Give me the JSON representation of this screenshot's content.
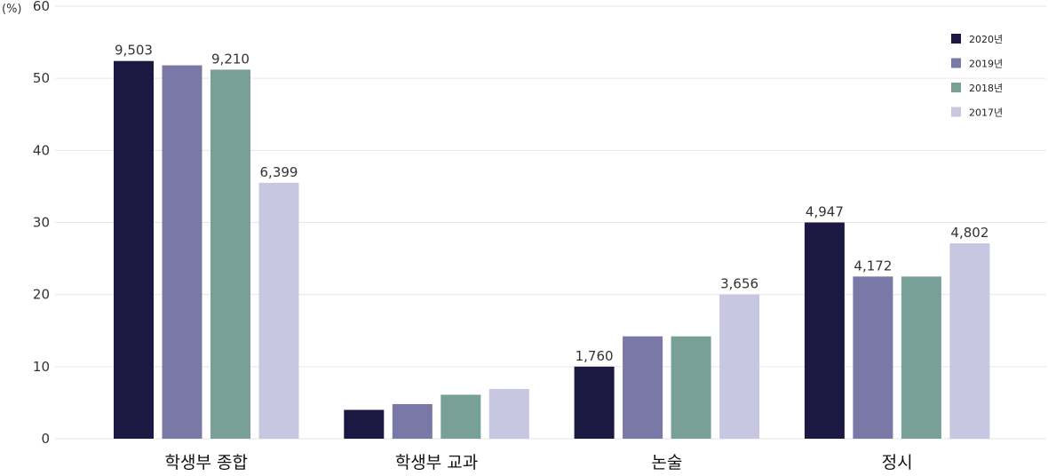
{
  "chart_data": {
    "type": "bar",
    "unit": "(%)",
    "categories": [
      "학생부 종합",
      "학생부 교과",
      "논술",
      "정시"
    ],
    "series": [
      {
        "name": "2020년",
        "color": "#1b1941",
        "values": [
          52.4,
          4.0,
          10.0,
          30.0
        ],
        "labels": [
          "9,503",
          "",
          "1,760",
          "4,947"
        ]
      },
      {
        "name": "2019년",
        "color": "#7a78a6",
        "values": [
          51.8,
          4.8,
          14.2,
          22.5
        ],
        "labels": [
          "",
          "",
          "",
          "4,172"
        ]
      },
      {
        "name": "2018년",
        "color": "#79a097",
        "values": [
          51.2,
          6.1,
          14.2,
          22.5
        ],
        "labels": [
          "9,210",
          "",
          "",
          ""
        ]
      },
      {
        "name": "2017년",
        "color": "#c8c7e2",
        "values": [
          35.5,
          6.9,
          20.0,
          27.1
        ],
        "labels": [
          "6,399",
          "",
          "3,656",
          "4,802"
        ]
      }
    ],
    "ylim": [
      0,
      60
    ],
    "yticks": [
      0,
      10,
      20,
      30,
      40,
      50,
      60
    ],
    "grid": true,
    "legend_position": "top-right"
  }
}
